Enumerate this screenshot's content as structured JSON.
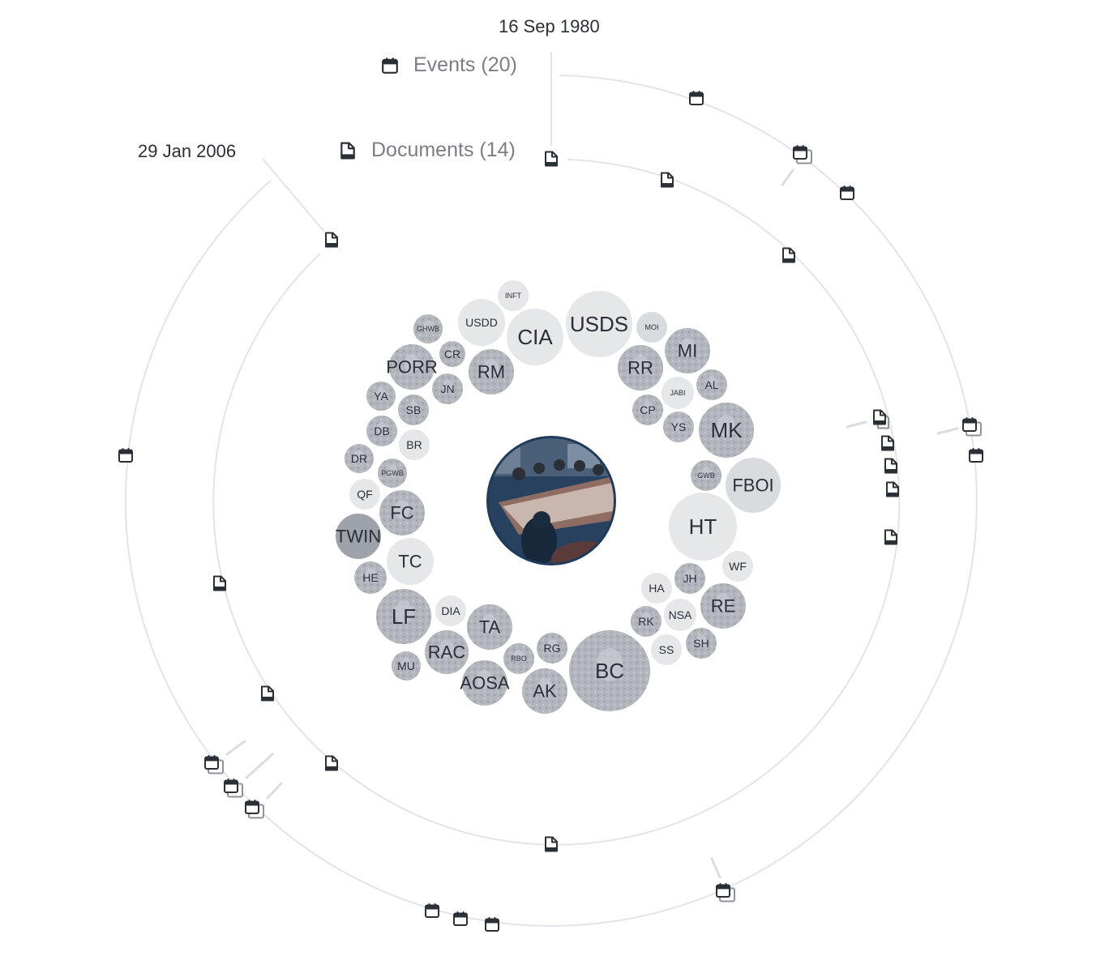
{
  "timeline": {
    "start_date": "16 Sep 1980",
    "end_date": "29 Jan 2006"
  },
  "legend": {
    "events_label": "Events (20)",
    "documents_label": "Documents (14)"
  },
  "icons": {
    "event": "calendar-icon",
    "document": "document-icon"
  },
  "colors": {
    "ring": "#e3e4e6",
    "icon": "#2b2f36",
    "node_light": "#e6e7e9",
    "node_dark": "#a9adb4",
    "center_border": "#1f3b5a"
  },
  "center_node": {
    "image": "meeting-photo"
  },
  "entities": [
    {
      "label": "INFT",
      "size": "tiny",
      "style": "light"
    },
    {
      "label": "USDD",
      "size": "small",
      "style": "light"
    },
    {
      "label": "CIA",
      "size": "large",
      "style": "light"
    },
    {
      "label": "USDS",
      "size": "large",
      "style": "light"
    },
    {
      "label": "MOI",
      "size": "tiny",
      "style": "emblem"
    },
    {
      "label": "GHWB",
      "size": "tiny",
      "style": "photo"
    },
    {
      "label": "CR",
      "size": "small",
      "style": "photo"
    },
    {
      "label": "RM",
      "size": "medium",
      "style": "photo"
    },
    {
      "label": "RR",
      "size": "medium",
      "style": "photo"
    },
    {
      "label": "MI",
      "size": "medium",
      "style": "photo"
    },
    {
      "label": "PORR",
      "size": "medium",
      "style": "photo"
    },
    {
      "label": "JN",
      "size": "small",
      "style": "photo"
    },
    {
      "label": "AL",
      "size": "small",
      "style": "photo"
    },
    {
      "label": "JABI",
      "size": "tiny",
      "style": "light"
    },
    {
      "label": "YA",
      "size": "small",
      "style": "photo"
    },
    {
      "label": "SB",
      "size": "small",
      "style": "photo"
    },
    {
      "label": "CP",
      "size": "small",
      "style": "photo"
    },
    {
      "label": "YS",
      "size": "small",
      "style": "photo"
    },
    {
      "label": "MK",
      "size": "large",
      "style": "photo"
    },
    {
      "label": "DB",
      "size": "small",
      "style": "photo"
    },
    {
      "label": "BR",
      "size": "small",
      "style": "light"
    },
    {
      "label": "DR",
      "size": "small",
      "style": "photo"
    },
    {
      "label": "PGWB",
      "size": "tiny",
      "style": "photo"
    },
    {
      "label": "GWB",
      "size": "tiny",
      "style": "photo"
    },
    {
      "label": "FBOI",
      "size": "medium",
      "style": "emblem"
    },
    {
      "label": "QF",
      "size": "small",
      "style": "light"
    },
    {
      "label": "FC",
      "size": "medium",
      "style": "photo"
    },
    {
      "label": "HT",
      "size": "xlarge",
      "style": "light"
    },
    {
      "label": "TWIN",
      "size": "medium",
      "style": "dark"
    },
    {
      "label": "TC",
      "size": "medium",
      "style": "light"
    },
    {
      "label": "WF",
      "size": "small",
      "style": "light"
    },
    {
      "label": "HE",
      "size": "small",
      "style": "photo"
    },
    {
      "label": "HA",
      "size": "small",
      "style": "light"
    },
    {
      "label": "JH",
      "size": "small",
      "style": "photo"
    },
    {
      "label": "LF",
      "size": "large",
      "style": "photo"
    },
    {
      "label": "DIA",
      "size": "small",
      "style": "light"
    },
    {
      "label": "TA",
      "size": "medium",
      "style": "photo"
    },
    {
      "label": "RE",
      "size": "medium",
      "style": "photo"
    },
    {
      "label": "RK",
      "size": "small",
      "style": "photo"
    },
    {
      "label": "NSA",
      "size": "small",
      "style": "light"
    },
    {
      "label": "RAC",
      "size": "medium",
      "style": "photo"
    },
    {
      "label": "RG",
      "size": "small",
      "style": "photo"
    },
    {
      "label": "SH",
      "size": "small",
      "style": "photo"
    },
    {
      "label": "MU",
      "size": "small",
      "style": "photo"
    },
    {
      "label": "RBO",
      "size": "tiny",
      "style": "photo"
    },
    {
      "label": "SS",
      "size": "small",
      "style": "light"
    },
    {
      "label": "BC",
      "size": "xlarge",
      "style": "photo"
    },
    {
      "label": "AOSA",
      "size": "medium",
      "style": "photo"
    },
    {
      "label": "AK",
      "size": "medium",
      "style": "photo"
    }
  ]
}
